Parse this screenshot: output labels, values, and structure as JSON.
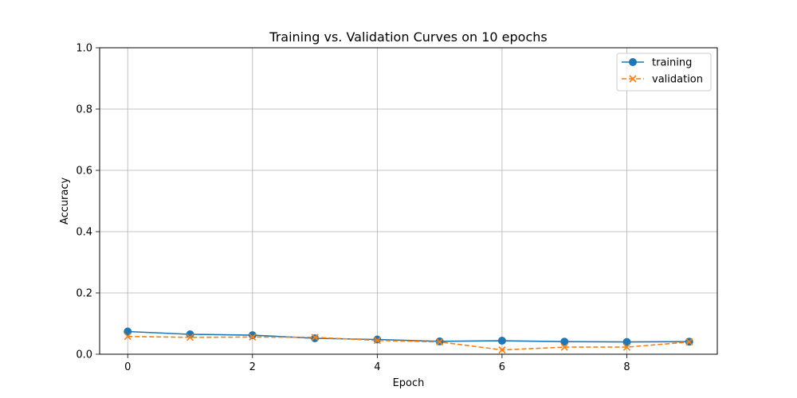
{
  "chart_data": {
    "type": "line",
    "title": "Training vs. Validation Curves on 10 epochs",
    "xlabel": "Epoch",
    "ylabel": "Accuracy",
    "xlim": [
      -0.45,
      9.45
    ],
    "ylim": [
      0.0,
      1.0
    ],
    "xticks": [
      0,
      2,
      4,
      6,
      8
    ],
    "yticks": [
      0.0,
      0.2,
      0.4,
      0.6,
      0.8,
      1.0
    ],
    "xtick_labels": [
      "0",
      "2",
      "4",
      "6",
      "8"
    ],
    "ytick_labels": [
      "0.0",
      "0.2",
      "0.4",
      "0.6",
      "0.8",
      "1.0"
    ],
    "grid": true,
    "legend_position": "top-right",
    "x": [
      0,
      1,
      2,
      3,
      4,
      5,
      6,
      7,
      8,
      9
    ],
    "series": [
      {
        "name": "training",
        "values": [
          0.074,
          0.065,
          0.062,
          0.052,
          0.048,
          0.042,
          0.044,
          0.041,
          0.04,
          0.041
        ],
        "color": "#1f77b4",
        "marker": "circle",
        "line_style": "solid"
      },
      {
        "name": "validation",
        "values": [
          0.058,
          0.055,
          0.056,
          0.055,
          0.045,
          0.04,
          0.014,
          0.023,
          0.023,
          0.04
        ],
        "color": "#ff7f0e",
        "marker": "x",
        "line_style": "dashed"
      }
    ]
  }
}
